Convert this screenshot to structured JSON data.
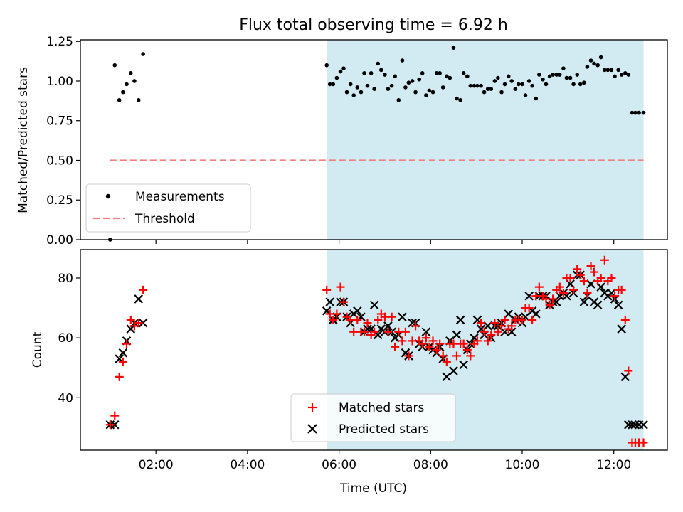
{
  "colors": {
    "measurement": "#000000",
    "threshold": "#f08080",
    "matched": "#ff0000",
    "predicted": "#000000",
    "shade": "#add8e6"
  },
  "chart_data": [
    {
      "type": "scatter",
      "title": "Flux total observing time = 6.92 h",
      "xlabel": "",
      "ylabel": "Matched/Predicted stars",
      "xlim": [
        0.35,
        13.17
      ],
      "ylim": [
        0.0,
        1.26
      ],
      "yticks": [
        0.0,
        0.25,
        0.5,
        0.75,
        1.0,
        1.25
      ],
      "ytick_labels": [
        "0.00",
        "0.25",
        "0.50",
        "0.75",
        "1.00",
        "1.25"
      ],
      "xticks": [
        2,
        4,
        6,
        8,
        10,
        12
      ],
      "shaded_span": [
        5.73,
        12.65
      ],
      "legend": {
        "placement": "lower-left",
        "entries": [
          "Measurements",
          "Threshold"
        ]
      },
      "threshold": {
        "name": "Threshold",
        "y": 0.5,
        "x_range": [
          1.0,
          12.65
        ]
      },
      "series": [
        {
          "name": "Measurements",
          "x": [
            1.0,
            1.1,
            1.2,
            1.28,
            1.36,
            1.45,
            1.53,
            1.62,
            1.72,
            5.73,
            5.8,
            5.87,
            5.95,
            6.03,
            6.1,
            6.17,
            6.25,
            6.32,
            6.4,
            6.48,
            6.55,
            6.62,
            6.7,
            6.77,
            6.85,
            6.92,
            7.0,
            7.07,
            7.15,
            7.22,
            7.3,
            7.38,
            7.45,
            7.52,
            7.6,
            7.67,
            7.75,
            7.82,
            7.9,
            7.97,
            8.05,
            8.13,
            8.2,
            8.27,
            8.35,
            8.42,
            8.5,
            8.57,
            8.65,
            8.72,
            8.8,
            8.87,
            8.95,
            9.02,
            9.1,
            9.17,
            9.25,
            9.32,
            9.4,
            9.47,
            9.55,
            9.62,
            9.7,
            9.77,
            9.85,
            9.92,
            10.0,
            10.07,
            10.15,
            10.22,
            10.3,
            10.37,
            10.45,
            10.52,
            10.6,
            10.67,
            10.75,
            10.82,
            10.9,
            10.97,
            11.05,
            11.12,
            11.2,
            11.27,
            11.35,
            11.42,
            11.5,
            11.57,
            11.65,
            11.72,
            11.8,
            11.87,
            11.95,
            12.02,
            12.1,
            12.17,
            12.25,
            12.32,
            12.4,
            12.47,
            12.55,
            12.65
          ],
          "y": [
            0.0,
            1.1,
            0.88,
            0.93,
            0.98,
            1.05,
            1.0,
            0.88,
            1.17,
            1.1,
            0.98,
            0.98,
            1.02,
            1.06,
            1.08,
            0.93,
            0.98,
            0.91,
            0.96,
            0.93,
            1.05,
            0.97,
            1.05,
            0.95,
            1.11,
            1.07,
            1.04,
            0.95,
            0.97,
            1.03,
            0.88,
            1.13,
            0.96,
            0.99,
            1.0,
            0.93,
            1.01,
            1.05,
            0.91,
            0.94,
            0.93,
            1.05,
            1.05,
            0.96,
            1.03,
            1.02,
            1.21,
            0.89,
            0.88,
            1.05,
            1.03,
            0.97,
            0.97,
            0.97,
            0.97,
            0.93,
            0.95,
            0.95,
            1.0,
            1.02,
            0.93,
            0.98,
            1.03,
            1.0,
            0.95,
            0.98,
            0.98,
            0.91,
            1.0,
            0.97,
            0.89,
            1.04,
            1.01,
            0.98,
            1.03,
            1.04,
            1.04,
            1.04,
            1.08,
            1.02,
            1.02,
            0.98,
            1.04,
            0.98,
            0.99,
            1.09,
            1.13,
            1.11,
            1.1,
            1.15,
            1.07,
            1.07,
            1.07,
            1.03,
            1.07,
            1.04,
            1.05,
            1.04,
            0.8,
            0.8,
            0.8,
            0.8
          ]
        }
      ]
    },
    {
      "type": "scatter",
      "title": "",
      "xlabel": "Time (UTC)",
      "ylabel": "Count",
      "xlim": [
        0.35,
        13.17
      ],
      "ylim": [
        22.5,
        89.5
      ],
      "yticks": [
        40,
        60,
        80
      ],
      "ytick_labels": [
        "40",
        "60",
        "80"
      ],
      "xticks": [
        2,
        4,
        6,
        8,
        10,
        12
      ],
      "xtick_labels": [
        "02:00",
        "04:00",
        "06:00",
        "08:00",
        "10:00",
        "12:00"
      ],
      "shaded_span": [
        5.73,
        12.65
      ],
      "legend": {
        "placement": "lower-center",
        "entries": [
          "Matched stars",
          "Predicted stars"
        ]
      },
      "series": [
        {
          "name": "Matched stars",
          "x": [
            1.0,
            1.1,
            1.2,
            1.28,
            1.36,
            1.45,
            1.53,
            1.62,
            1.72,
            5.73,
            5.8,
            5.87,
            5.95,
            6.03,
            6.1,
            6.17,
            6.25,
            6.32,
            6.4,
            6.48,
            6.55,
            6.62,
            6.7,
            6.77,
            6.85,
            6.92,
            7.0,
            7.07,
            7.15,
            7.22,
            7.3,
            7.38,
            7.45,
            7.52,
            7.6,
            7.67,
            7.75,
            7.82,
            7.9,
            7.97,
            8.05,
            8.13,
            8.2,
            8.27,
            8.35,
            8.42,
            8.5,
            8.57,
            8.65,
            8.72,
            8.8,
            8.87,
            8.95,
            9.02,
            9.1,
            9.17,
            9.25,
            9.32,
            9.4,
            9.47,
            9.55,
            9.62,
            9.7,
            9.77,
            9.85,
            9.92,
            10.0,
            10.07,
            10.15,
            10.22,
            10.3,
            10.37,
            10.45,
            10.52,
            10.6,
            10.67,
            10.75,
            10.82,
            10.9,
            10.97,
            11.05,
            11.12,
            11.2,
            11.27,
            11.35,
            11.42,
            11.5,
            11.57,
            11.65,
            11.72,
            11.8,
            11.87,
            11.95,
            12.02,
            12.1,
            12.17,
            12.25,
            12.32,
            12.4,
            12.47,
            12.55,
            12.65
          ],
          "y": [
            31,
            34,
            47,
            52,
            58,
            66,
            64,
            65,
            76,
            76,
            68,
            66,
            68,
            77,
            72,
            67,
            66,
            62,
            66,
            62,
            62,
            65,
            61,
            62,
            66,
            68,
            67,
            62,
            67,
            57,
            62,
            59,
            62,
            54,
            59,
            64,
            59,
            58,
            60,
            57,
            59,
            56,
            58,
            54,
            52,
            58,
            58,
            54,
            58,
            58,
            56,
            54,
            58,
            59,
            65,
            62,
            59,
            61,
            65,
            62,
            64,
            66,
            63,
            64,
            66,
            66,
            66,
            70,
            70,
            66,
            74,
            77,
            74,
            73,
            71,
            73,
            76,
            77,
            75,
            80,
            80,
            76,
            83,
            81,
            79,
            75,
            84,
            82,
            79,
            80,
            86,
            79,
            80,
            74,
            76,
            76,
            66,
            49,
            25,
            25,
            25,
            25
          ]
        },
        {
          "name": "Predicted stars",
          "x": [
            1.0,
            1.1,
            1.2,
            1.28,
            1.36,
            1.45,
            1.53,
            1.62,
            1.72,
            5.73,
            5.8,
            5.87,
            5.95,
            6.03,
            6.1,
            6.17,
            6.25,
            6.32,
            6.4,
            6.48,
            6.55,
            6.62,
            6.7,
            6.77,
            6.85,
            6.92,
            7.0,
            7.07,
            7.15,
            7.22,
            7.3,
            7.38,
            7.45,
            7.52,
            7.6,
            7.67,
            7.75,
            7.82,
            7.9,
            7.97,
            8.05,
            8.13,
            8.2,
            8.27,
            8.35,
            8.42,
            8.5,
            8.57,
            8.65,
            8.72,
            8.8,
            8.87,
            8.95,
            9.02,
            9.1,
            9.17,
            9.25,
            9.32,
            9.4,
            9.47,
            9.55,
            9.62,
            9.7,
            9.77,
            9.85,
            9.92,
            10.0,
            10.07,
            10.15,
            10.22,
            10.3,
            10.37,
            10.45,
            10.52,
            10.6,
            10.67,
            10.75,
            10.82,
            10.9,
            10.97,
            11.05,
            11.12,
            11.2,
            11.27,
            11.35,
            11.42,
            11.5,
            11.57,
            11.65,
            11.72,
            11.8,
            11.87,
            11.95,
            12.02,
            12.1,
            12.17,
            12.25,
            12.32,
            12.4,
            12.47,
            12.55,
            12.65
          ],
          "y": [
            31,
            31,
            53,
            55,
            59,
            63,
            65,
            73,
            65,
            69,
            72,
            66,
            67,
            72,
            72,
            67,
            65,
            68,
            69,
            67,
            62,
            63,
            63,
            71,
            61,
            63,
            62,
            64,
            62,
            60,
            61,
            67,
            55,
            54,
            65,
            65,
            58,
            57,
            62,
            57,
            56,
            55,
            57,
            53,
            47,
            59,
            49,
            61,
            66,
            51,
            56,
            58,
            60,
            66,
            63,
            61,
            64,
            60,
            64,
            64,
            65,
            62,
            68,
            62,
            66,
            67,
            65,
            67,
            74,
            69,
            68,
            74,
            74,
            74,
            71,
            72,
            72,
            74,
            75,
            74,
            78,
            75,
            81,
            81,
            72,
            74,
            78,
            72,
            71,
            77,
            75,
            74,
            75,
            73,
            71,
            63,
            47,
            31,
            31,
            31,
            31,
            31
          ]
        }
      ]
    }
  ]
}
